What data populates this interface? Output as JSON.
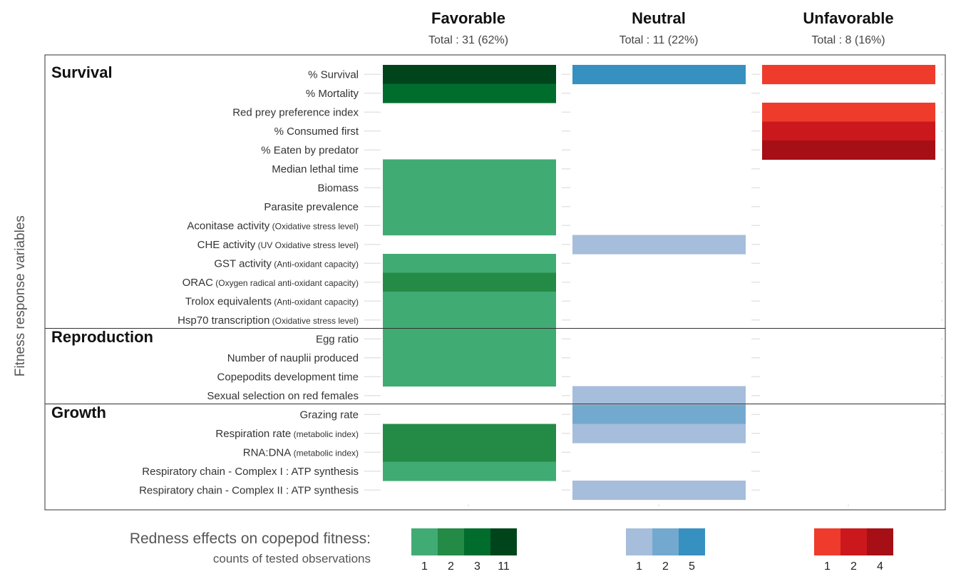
{
  "chart_data": {
    "type": "heatmap",
    "ylabel": "Fitness response variables",
    "columns": [
      {
        "title": "Favorable",
        "total": "Total : 31 (62%)"
      },
      {
        "title": "Neutral",
        "total": "Total : 11 (22%)"
      },
      {
        "title": "Unfavorable",
        "total": "Total : 8 (16%)"
      }
    ],
    "sections": [
      "Survival",
      "Reproduction",
      "Growth"
    ],
    "rows": [
      {
        "label": "% Survival",
        "sub": "",
        "section": "Survival",
        "values": [
          11,
          5,
          1
        ]
      },
      {
        "label": "% Mortality",
        "sub": "",
        "section": "Survival",
        "values": [
          3,
          0,
          0
        ]
      },
      {
        "label": "Red prey preference index",
        "sub": "",
        "section": "Survival",
        "values": [
          0,
          0,
          1
        ]
      },
      {
        "label": "% Consumed first",
        "sub": "",
        "section": "Survival",
        "values": [
          0,
          0,
          2
        ]
      },
      {
        "label": "% Eaten by predator",
        "sub": "",
        "section": "Survival",
        "values": [
          0,
          0,
          4
        ]
      },
      {
        "label": "Median lethal time",
        "sub": "",
        "section": "Survival",
        "values": [
          1,
          0,
          0
        ]
      },
      {
        "label": "Biomass",
        "sub": "",
        "section": "Survival",
        "values": [
          1,
          0,
          0
        ]
      },
      {
        "label": "Parasite prevalence",
        "sub": "",
        "section": "Survival",
        "values": [
          1,
          0,
          0
        ]
      },
      {
        "label": "Aconitase activity",
        "sub": "(Oxidative stress level)",
        "section": "Survival",
        "values": [
          1,
          0,
          0
        ]
      },
      {
        "label": "CHE activity",
        "sub": "(UV Oxidative stress level)",
        "section": "Survival",
        "values": [
          0,
          1,
          0
        ]
      },
      {
        "label": "GST activity",
        "sub": "(Anti-oxidant capacity)",
        "section": "Survival",
        "values": [
          1,
          0,
          0
        ]
      },
      {
        "label": "ORAC",
        "sub": "(Oxygen radical anti-oxidant capacity)",
        "section": "Survival",
        "values": [
          2,
          0,
          0
        ]
      },
      {
        "label": "Trolox equivalents",
        "sub": "(Anti-oxidant capacity)",
        "section": "Survival",
        "values": [
          1,
          0,
          0
        ]
      },
      {
        "label": "Hsp70 transcription",
        "sub": "(Oxidative stress level)",
        "section": "Survival",
        "values": [
          1,
          0,
          0
        ]
      },
      {
        "label": "Egg ratio",
        "sub": "",
        "section": "Reproduction",
        "values": [
          1,
          0,
          0
        ]
      },
      {
        "label": "Number of nauplii produced",
        "sub": "",
        "section": "Reproduction",
        "values": [
          1,
          0,
          0
        ]
      },
      {
        "label": "Copepodits development time",
        "sub": "",
        "section": "Reproduction",
        "values": [
          1,
          0,
          0
        ]
      },
      {
        "label": "Sexual selection on red females",
        "sub": "",
        "section": "Reproduction",
        "values": [
          0,
          1,
          0
        ]
      },
      {
        "label": "Grazing rate",
        "sub": "",
        "section": "Growth",
        "values": [
          0,
          2,
          0
        ]
      },
      {
        "label": "Respiration rate",
        "sub": "(metabolic index)",
        "section": "Growth",
        "values": [
          2,
          1,
          0
        ]
      },
      {
        "label": "RNA:DNA",
        "sub": "(metabolic index)",
        "section": "Growth",
        "values": [
          2,
          0,
          0
        ]
      },
      {
        "label": "Respiratory chain - Complex I : ATP synthesis",
        "sub": "",
        "section": "Growth",
        "values": [
          1,
          0,
          0
        ]
      },
      {
        "label": "Respiratory chain - Complex II : ATP synthesis",
        "sub": "",
        "section": "Growth",
        "values": [
          0,
          1,
          0
        ]
      }
    ],
    "legend": {
      "title": "Redness effects on copepod fitness:",
      "subtitle": "counts of tested observations",
      "scales": [
        {
          "column": "Favorable",
          "counts": [
            1,
            2,
            3,
            11
          ],
          "colors": [
            "#41ab74",
            "#238b45",
            "#006d2c",
            "#00441b"
          ]
        },
        {
          "column": "Neutral",
          "counts": [
            1,
            2,
            5
          ],
          "colors": [
            "#a6bddb",
            "#74a9cf",
            "#3690c0"
          ]
        },
        {
          "column": "Unfavorable",
          "counts": [
            1,
            2,
            4
          ],
          "colors": [
            "#ef3b2c",
            "#cb181d",
            "#a50f15"
          ]
        }
      ]
    }
  }
}
